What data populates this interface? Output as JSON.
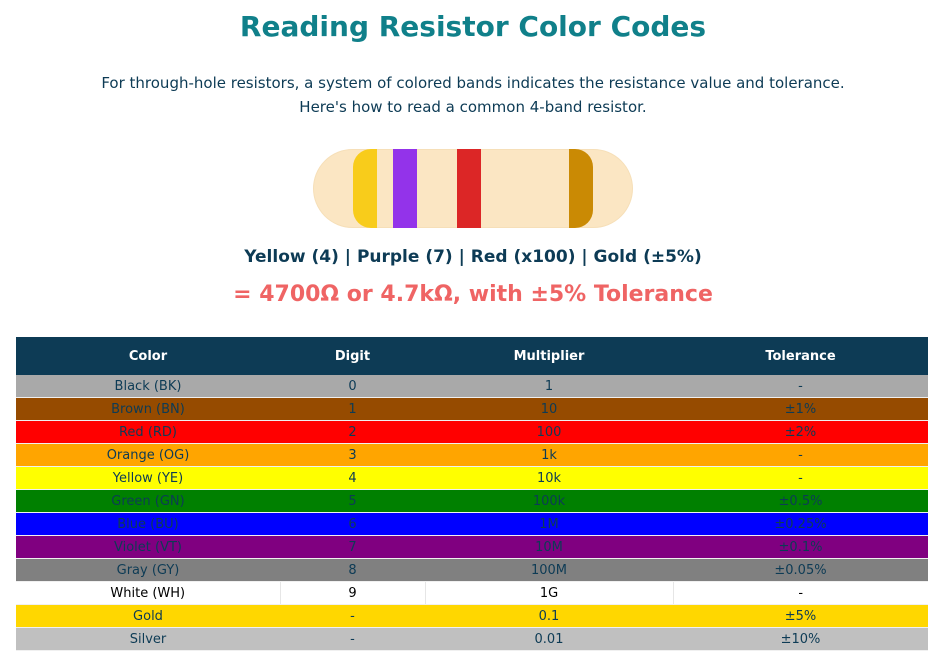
{
  "title": "Reading Resistor Color Codes",
  "intro": {
    "line1": "For through-hole resistors, a system of colored bands indicates the resistance value and tolerance.",
    "line2": "Here's how to read a common 4-band resistor."
  },
  "resistor": {
    "body_color": "#fbe6c3",
    "bands": [
      {
        "name": "Yellow",
        "color": "#f8cc1b"
      },
      {
        "name": "Purple",
        "color": "#9333ea"
      },
      {
        "name": "Red",
        "color": "#dc2626"
      },
      {
        "name": "Gold",
        "color": "#ca8a04"
      }
    ]
  },
  "formula": {
    "b1": "Yellow (4)",
    "b2": "Purple (7)",
    "b3": "Red (x100)",
    "b4": "Gold (±5%)",
    "sep": "|"
  },
  "result": "= 4700Ω or 4.7kΩ, with ±5% Tolerance",
  "table": {
    "headers": [
      "Color",
      "Digit",
      "Multiplier",
      "Tolerance"
    ],
    "rows": [
      {
        "cells": [
          "Black (BK)",
          "0",
          "1",
          "-"
        ],
        "bg": "#a9a9a9",
        "fg": "#0d3b55"
      },
      {
        "cells": [
          "Brown (BN)",
          "1",
          "10",
          "±1%"
        ],
        "bg": "#964b00",
        "fg": "#0d3b55"
      },
      {
        "cells": [
          "Red (RD)",
          "2",
          "100",
          "±2%"
        ],
        "bg": "#ff0000",
        "fg": "#0d3b55"
      },
      {
        "cells": [
          "Orange (OG)",
          "3",
          "1k",
          "-"
        ],
        "bg": "#ffa500",
        "fg": "#0d3b55"
      },
      {
        "cells": [
          "Yellow (YE)",
          "4",
          "10k",
          "-"
        ],
        "bg": "#ffff00",
        "fg": "#0d3b55"
      },
      {
        "cells": [
          "Green (GN)",
          "5",
          "100k",
          "±0.5%"
        ],
        "bg": "#008000",
        "fg": "#0d3b55"
      },
      {
        "cells": [
          "Blue (BU)",
          "6",
          "1M",
          "±0.25%"
        ],
        "bg": "#0000ff",
        "fg": "#0d3b55"
      },
      {
        "cells": [
          "Violet (VT)",
          "7",
          "10M",
          "±0.1%"
        ],
        "bg": "#800080",
        "fg": "#0d3b55"
      },
      {
        "cells": [
          "Gray (GY)",
          "8",
          "100M",
          "±0.05%"
        ],
        "bg": "#808080",
        "fg": "#0d3b55"
      },
      {
        "cells": [
          "White (WH)",
          "9",
          "1G",
          "-"
        ],
        "bg": "#ffffff",
        "fg": "#000000"
      },
      {
        "cells": [
          "Gold",
          "-",
          "0.1",
          "±5%"
        ],
        "bg": "#ffd700",
        "fg": "#0d3b55"
      },
      {
        "cells": [
          "Silver",
          "-",
          "0.01",
          "±10%"
        ],
        "bg": "#c0c0c0",
        "fg": "#0d3b55"
      }
    ]
  }
}
